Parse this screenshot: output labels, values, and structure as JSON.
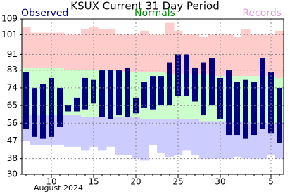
{
  "chart_data": {
    "type": "range-bar",
    "title": "KSUX Current 31 Day Period",
    "x_label": "August 2024",
    "categories": [
      null,
      null,
      null,
      "10",
      null,
      null,
      null,
      null,
      "15",
      null,
      null,
      null,
      null,
      "20",
      null,
      null,
      null,
      null,
      "25",
      null,
      null,
      null,
      null,
      "30",
      null,
      null,
      null,
      null,
      null,
      "5",
      null
    ],
    "ylim": [
      30,
      109
    ],
    "yticks": [
      30,
      38,
      47,
      56,
      65,
      74,
      83,
      91,
      101,
      109
    ],
    "grid": true,
    "series": [
      {
        "name": "Observed",
        "color": "#000080",
        "high": [
          82,
          74,
          76,
          79,
          74,
          65,
          69,
          79,
          78,
          83,
          83,
          83,
          84,
          69,
          77,
          80,
          80,
          87,
          91,
          91,
          84,
          87,
          89,
          79,
          83,
          77,
          78,
          77,
          89,
          82,
          74
        ],
        "low": [
          53,
          49,
          48,
          49,
          54,
          62,
          62,
          63,
          66,
          59,
          58,
          60,
          59,
          61,
          64,
          63,
          65,
          65,
          70,
          70,
          67,
          60,
          65,
          58,
          50,
          50,
          48,
          50,
          53,
          51,
          46
        ]
      },
      {
        "name": "Normals",
        "color": "#008000",
        "high": [
          84,
          84,
          84,
          84,
          84,
          83,
          83,
          83,
          83,
          83,
          83,
          82,
          82,
          82,
          82,
          82,
          82,
          81,
          81,
          81,
          81,
          81,
          81,
          80,
          80,
          80,
          80,
          80,
          80,
          80,
          79
        ],
        "low": [
          60,
          60,
          60,
          60,
          60,
          60,
          60,
          59,
          59,
          59,
          59,
          59,
          59,
          59,
          58,
          58,
          58,
          58,
          58,
          58,
          58,
          57,
          57,
          57,
          57,
          57,
          57,
          56,
          56,
          56,
          56
        ]
      },
      {
        "name": "Records",
        "color": "#dd99dd",
        "high": [
          105,
          102,
          102,
          102,
          102,
          101,
          101,
          104,
          105,
          104,
          104,
          101,
          101,
          101,
          103,
          101,
          101,
          107,
          103,
          101,
          101,
          100,
          101,
          101,
          101,
          100,
          104,
          101,
          101,
          101,
          103
        ],
        "low": [
          47,
          45,
          45,
          45,
          45,
          44,
          44,
          42,
          44,
          42,
          44,
          40,
          40,
          38,
          37,
          45,
          41,
          39,
          40,
          42,
          40,
          38,
          38,
          38,
          38,
          39,
          38,
          38,
          38,
          40,
          38
        ]
      }
    ]
  }
}
